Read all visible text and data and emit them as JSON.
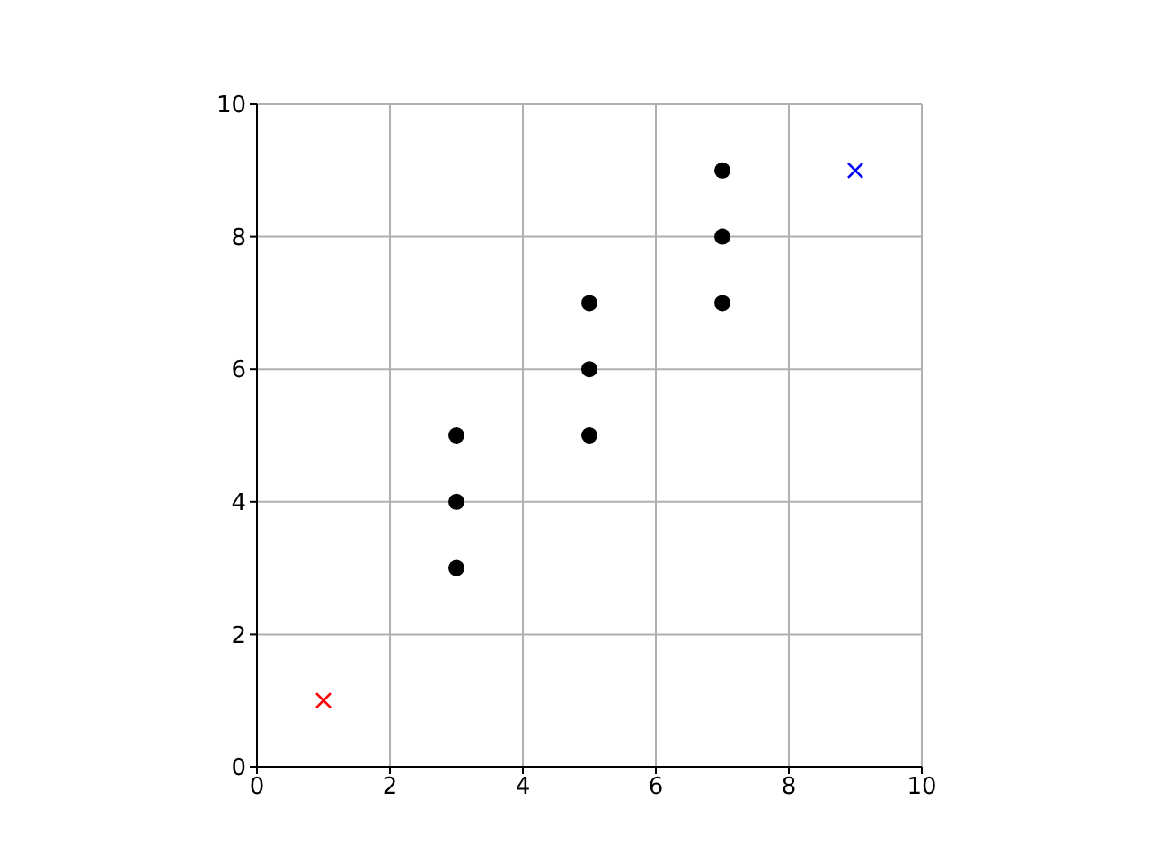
{
  "chart_data": {
    "type": "scatter",
    "xlim": [
      0,
      10
    ],
    "ylim": [
      0,
      10
    ],
    "xticks": [
      0,
      2,
      4,
      6,
      8,
      10
    ],
    "yticks": [
      0,
      2,
      4,
      6,
      8,
      10
    ],
    "grid": true,
    "legend": false,
    "series": [
      {
        "color": "#000000",
        "marker": "circle",
        "x": [
          3,
          3,
          3,
          5,
          5,
          5,
          7,
          7,
          7
        ],
        "values": [
          3,
          4,
          5,
          5,
          6,
          7,
          7,
          8,
          9
        ]
      },
      {
        "color": "#ff0000",
        "marker": "cross",
        "x": [
          1
        ],
        "values": [
          1
        ]
      },
      {
        "color": "#0000ff",
        "marker": "cross",
        "x": [
          9
        ],
        "values": [
          9
        ]
      }
    ]
  }
}
